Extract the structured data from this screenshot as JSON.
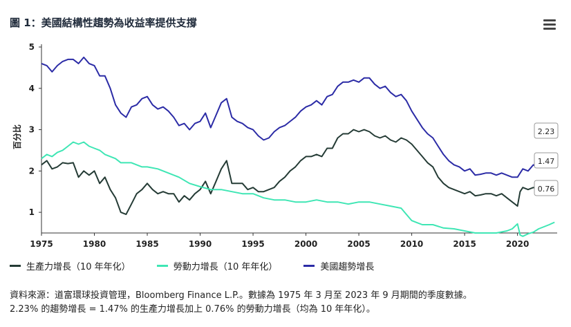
{
  "title": "圖 1：美國結構性趨勢為收益率提供支撐",
  "menu_icon": "hamburger-menu-icon",
  "chart_data": {
    "type": "line",
    "ylabel": "百分比",
    "ylim": [
      0.5,
      5
    ],
    "xlim": [
      1975,
      2023.75
    ],
    "y_ticks": [
      1,
      2,
      3,
      4,
      5
    ],
    "x_ticks": [
      1975,
      1980,
      1985,
      1990,
      1995,
      2000,
      2005,
      2010,
      2015,
      2020
    ],
    "series": [
      {
        "name": "生產力增長（10 年年化）",
        "color": "#243b35",
        "points": [
          [
            1975,
            2.15
          ],
          [
            1975.5,
            2.25
          ],
          [
            1976,
            2.05
          ],
          [
            1976.5,
            2.1
          ],
          [
            1977,
            2.2
          ],
          [
            1977.5,
            2.18
          ],
          [
            1978,
            2.2
          ],
          [
            1978.5,
            1.85
          ],
          [
            1979,
            2.0
          ],
          [
            1979.5,
            1.9
          ],
          [
            1980,
            2.0
          ],
          [
            1980.5,
            1.7
          ],
          [
            1981,
            1.85
          ],
          [
            1981.5,
            1.55
          ],
          [
            1982,
            1.35
          ],
          [
            1982.5,
            1.0
          ],
          [
            1983,
            0.95
          ],
          [
            1983.5,
            1.2
          ],
          [
            1984,
            1.45
          ],
          [
            1984.5,
            1.55
          ],
          [
            1985,
            1.7
          ],
          [
            1985.5,
            1.55
          ],
          [
            1986,
            1.45
          ],
          [
            1986.5,
            1.5
          ],
          [
            1987,
            1.45
          ],
          [
            1987.5,
            1.45
          ],
          [
            1988,
            1.25
          ],
          [
            1988.5,
            1.4
          ],
          [
            1989,
            1.3
          ],
          [
            1989.5,
            1.45
          ],
          [
            1990,
            1.55
          ],
          [
            1990.5,
            1.75
          ],
          [
            1991,
            1.45
          ],
          [
            1991.5,
            1.75
          ],
          [
            1992,
            2.05
          ],
          [
            1992.5,
            2.25
          ],
          [
            1993,
            1.7
          ],
          [
            1993.5,
            1.7
          ],
          [
            1994,
            1.7
          ],
          [
            1994.5,
            1.55
          ],
          [
            1995,
            1.6
          ],
          [
            1995.5,
            1.5
          ],
          [
            1996,
            1.5
          ],
          [
            1996.5,
            1.55
          ],
          [
            1997,
            1.6
          ],
          [
            1997.5,
            1.75
          ],
          [
            1998,
            1.85
          ],
          [
            1998.5,
            2.0
          ],
          [
            1999,
            2.1
          ],
          [
            1999.5,
            2.25
          ],
          [
            2000,
            2.35
          ],
          [
            2000.5,
            2.35
          ],
          [
            2001,
            2.4
          ],
          [
            2001.5,
            2.35
          ],
          [
            2002,
            2.55
          ],
          [
            2002.5,
            2.55
          ],
          [
            2003,
            2.8
          ],
          [
            2003.5,
            2.9
          ],
          [
            2004,
            2.9
          ],
          [
            2004.5,
            3.0
          ],
          [
            2005,
            2.95
          ],
          [
            2005.5,
            3.0
          ],
          [
            2006,
            2.95
          ],
          [
            2006.5,
            2.85
          ],
          [
            2007,
            2.8
          ],
          [
            2007.5,
            2.85
          ],
          [
            2008,
            2.75
          ],
          [
            2008.5,
            2.7
          ],
          [
            2009,
            2.8
          ],
          [
            2009.5,
            2.75
          ],
          [
            2010,
            2.65
          ],
          [
            2010.5,
            2.5
          ],
          [
            2011,
            2.35
          ],
          [
            2011.5,
            2.2
          ],
          [
            2012,
            2.1
          ],
          [
            2012.5,
            1.85
          ],
          [
            2013,
            1.7
          ],
          [
            2013.5,
            1.6
          ],
          [
            2014,
            1.55
          ],
          [
            2014.5,
            1.5
          ],
          [
            2015,
            1.45
          ],
          [
            2015.5,
            1.5
          ],
          [
            2016,
            1.4
          ],
          [
            2016.5,
            1.42
          ],
          [
            2017,
            1.45
          ],
          [
            2017.5,
            1.45
          ],
          [
            2018,
            1.4
          ],
          [
            2018.5,
            1.45
          ],
          [
            2019,
            1.35
          ],
          [
            2019.5,
            1.25
          ],
          [
            2020,
            1.15
          ],
          [
            2020.25,
            1.5
          ],
          [
            2020.5,
            1.6
          ],
          [
            2021,
            1.55
          ],
          [
            2021.5,
            1.6
          ],
          [
            2022,
            1.55
          ],
          [
            2022.5,
            1.5
          ]
        ]
      },
      {
        "name": "勞動力增長（10 年年化）",
        "color": "#3ee6b4",
        "points": [
          [
            1975,
            2.3
          ],
          [
            1975.5,
            2.4
          ],
          [
            1976,
            2.35
          ],
          [
            1976.5,
            2.45
          ],
          [
            1977,
            2.5
          ],
          [
            1977.5,
            2.6
          ],
          [
            1978,
            2.7
          ],
          [
            1978.5,
            2.65
          ],
          [
            1979,
            2.7
          ],
          [
            1979.5,
            2.6
          ],
          [
            1980,
            2.55
          ],
          [
            1980.5,
            2.5
          ],
          [
            1981,
            2.4
          ],
          [
            1981.5,
            2.35
          ],
          [
            1982,
            2.3
          ],
          [
            1982.5,
            2.2
          ],
          [
            1983,
            2.2
          ],
          [
            1983.5,
            2.2
          ],
          [
            1984,
            2.15
          ],
          [
            1984.5,
            2.1
          ],
          [
            1985,
            2.1
          ],
          [
            1986,
            2.05
          ],
          [
            1987,
            1.95
          ],
          [
            1988,
            1.85
          ],
          [
            1989,
            1.7
          ],
          [
            1990,
            1.62
          ],
          [
            1991,
            1.55
          ],
          [
            1992,
            1.55
          ],
          [
            1993,
            1.5
          ],
          [
            1994,
            1.45
          ],
          [
            1995,
            1.45
          ],
          [
            1996,
            1.35
          ],
          [
            1997,
            1.3
          ],
          [
            1998,
            1.3
          ],
          [
            1999,
            1.25
          ],
          [
            2000,
            1.25
          ],
          [
            2001,
            1.3
          ],
          [
            2002,
            1.25
          ],
          [
            2003,
            1.25
          ],
          [
            2004,
            1.2
          ],
          [
            2005,
            1.25
          ],
          [
            2006,
            1.25
          ],
          [
            2007,
            1.2
          ],
          [
            2008,
            1.15
          ],
          [
            2009,
            1.1
          ],
          [
            2009.5,
            0.95
          ],
          [
            2010,
            0.8
          ],
          [
            2010.5,
            0.75
          ],
          [
            2011,
            0.7
          ],
          [
            2012,
            0.7
          ],
          [
            2013,
            0.62
          ],
          [
            2014,
            0.6
          ],
          [
            2015,
            0.55
          ],
          [
            2016,
            0.5
          ],
          [
            2017,
            0.5
          ],
          [
            2018,
            0.5
          ],
          [
            2019,
            0.55
          ],
          [
            2019.5,
            0.6
          ],
          [
            2020,
            0.72
          ],
          [
            2020.25,
            0.45
          ],
          [
            2020.5,
            0.42
          ],
          [
            2021,
            0.48
          ],
          [
            2021.5,
            0.52
          ],
          [
            2022,
            0.6
          ],
          [
            2022.5,
            0.65
          ],
          [
            2023,
            0.7
          ],
          [
            2023.5,
            0.76
          ]
        ]
      },
      {
        "name": "美國趨勢增長",
        "color": "#2b2ba6",
        "points": [
          [
            1975,
            4.6
          ],
          [
            1975.5,
            4.55
          ],
          [
            1976,
            4.4
          ],
          [
            1976.5,
            4.55
          ],
          [
            1977,
            4.65
          ],
          [
            1977.5,
            4.7
          ],
          [
            1978,
            4.7
          ],
          [
            1978.5,
            4.6
          ],
          [
            1979,
            4.75
          ],
          [
            1979.5,
            4.6
          ],
          [
            1980,
            4.55
          ],
          [
            1980.5,
            4.3
          ],
          [
            1981,
            4.3
          ],
          [
            1981.5,
            4.0
          ],
          [
            1982,
            3.6
          ],
          [
            1982.5,
            3.4
          ],
          [
            1983,
            3.3
          ],
          [
            1983.5,
            3.55
          ],
          [
            1984,
            3.6
          ],
          [
            1984.5,
            3.75
          ],
          [
            1985,
            3.8
          ],
          [
            1985.5,
            3.6
          ],
          [
            1986,
            3.5
          ],
          [
            1986.5,
            3.55
          ],
          [
            1987,
            3.45
          ],
          [
            1987.5,
            3.3
          ],
          [
            1988,
            3.1
          ],
          [
            1988.5,
            3.15
          ],
          [
            1989,
            3.0
          ],
          [
            1989.5,
            3.15
          ],
          [
            1990,
            3.2
          ],
          [
            1990.5,
            3.4
          ],
          [
            1991,
            3.05
          ],
          [
            1991.5,
            3.35
          ],
          [
            1992,
            3.65
          ],
          [
            1992.5,
            3.75
          ],
          [
            1993,
            3.3
          ],
          [
            1993.5,
            3.2
          ],
          [
            1994,
            3.15
          ],
          [
            1994.5,
            3.05
          ],
          [
            1995,
            3.0
          ],
          [
            1995.5,
            2.85
          ],
          [
            1996,
            2.75
          ],
          [
            1996.5,
            2.8
          ],
          [
            1997,
            2.95
          ],
          [
            1997.5,
            3.05
          ],
          [
            1998,
            3.1
          ],
          [
            1998.5,
            3.2
          ],
          [
            1999,
            3.3
          ],
          [
            1999.5,
            3.45
          ],
          [
            2000,
            3.55
          ],
          [
            2000.5,
            3.6
          ],
          [
            2001,
            3.7
          ],
          [
            2001.5,
            3.6
          ],
          [
            2002,
            3.8
          ],
          [
            2002.5,
            3.85
          ],
          [
            2003,
            4.05
          ],
          [
            2003.5,
            4.15
          ],
          [
            2004,
            4.15
          ],
          [
            2004.5,
            4.2
          ],
          [
            2005,
            4.15
          ],
          [
            2005.5,
            4.25
          ],
          [
            2006,
            4.25
          ],
          [
            2006.5,
            4.1
          ],
          [
            2007,
            4.0
          ],
          [
            2007.5,
            4.05
          ],
          [
            2008,
            3.9
          ],
          [
            2008.5,
            3.8
          ],
          [
            2009,
            3.85
          ],
          [
            2009.5,
            3.7
          ],
          [
            2010,
            3.45
          ],
          [
            2010.5,
            3.25
          ],
          [
            2011,
            3.05
          ],
          [
            2011.5,
            2.9
          ],
          [
            2012,
            2.8
          ],
          [
            2012.5,
            2.6
          ],
          [
            2013,
            2.4
          ],
          [
            2013.5,
            2.25
          ],
          [
            2014,
            2.15
          ],
          [
            2014.5,
            2.1
          ],
          [
            2015,
            2.0
          ],
          [
            2015.5,
            2.05
          ],
          [
            2016,
            1.9
          ],
          [
            2016.5,
            1.92
          ],
          [
            2017,
            1.95
          ],
          [
            2017.5,
            1.95
          ],
          [
            2018,
            1.9
          ],
          [
            2018.5,
            1.95
          ],
          [
            2019,
            1.9
          ],
          [
            2019.5,
            1.85
          ],
          [
            2020,
            1.85
          ],
          [
            2020.25,
            1.95
          ],
          [
            2020.5,
            2.05
          ],
          [
            2021,
            2.0
          ],
          [
            2021.5,
            2.15
          ],
          [
            2022,
            2.1
          ],
          [
            2022.5,
            2.2
          ],
          [
            2023,
            2.23
          ]
        ]
      }
    ],
    "annotations": [
      {
        "label": "2.23",
        "value": 2.23,
        "color": "#2b2ba6"
      },
      {
        "label": "1.47",
        "value": 1.47,
        "color": "#243b35"
      },
      {
        "label": "0.76",
        "value": 0.76,
        "color": "#3ee6b4"
      }
    ]
  },
  "legend": [
    {
      "label": "生產力增長（10 年年化）",
      "color": "#243b35"
    },
    {
      "label": "勞動力增長（10 年年化）",
      "color": "#3ee6b4"
    },
    {
      "label": "美國趨勢增長",
      "color": "#2b2ba6"
    }
  ],
  "source_line1": "資料來源：道富環球投資管理，Bloomberg Finance L.P.。數據為 1975 年 3 月至 2023 年 9 月期間的季度數據。",
  "source_line2": "2.23% 的趨勢增長 = 1.47% 的生產力增長加上 0.76% 的勞動力增長（均為 10 年年化）。"
}
